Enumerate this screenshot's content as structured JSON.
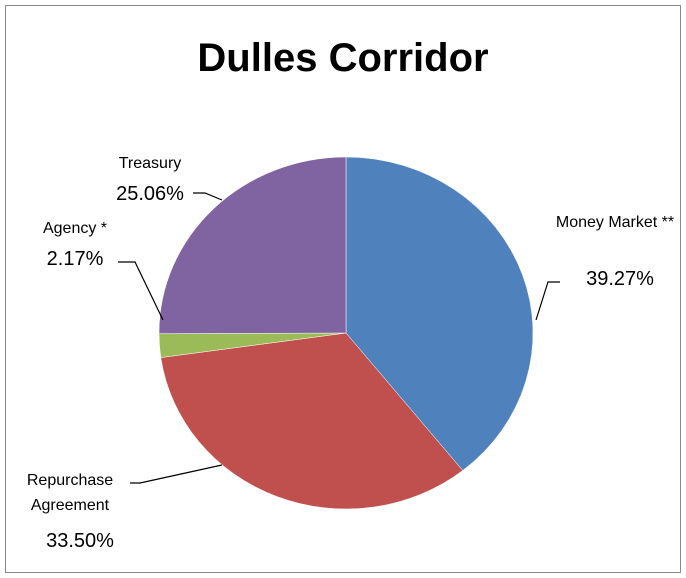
{
  "chart_data": {
    "type": "pie",
    "title": "Dulles Corridor",
    "categories": [
      "Money Market **",
      "Repurchase Agreement",
      "Agency *",
      "Treasury"
    ],
    "values": [
      39.27,
      33.5,
      2.17,
      25.06
    ],
    "value_labels": [
      "39.27%",
      "33.50%",
      "2.17%",
      "25.06%"
    ],
    "colors": [
      "#4f81bd",
      "#c0504d",
      "#9bbb59",
      "#8064a2"
    ]
  }
}
